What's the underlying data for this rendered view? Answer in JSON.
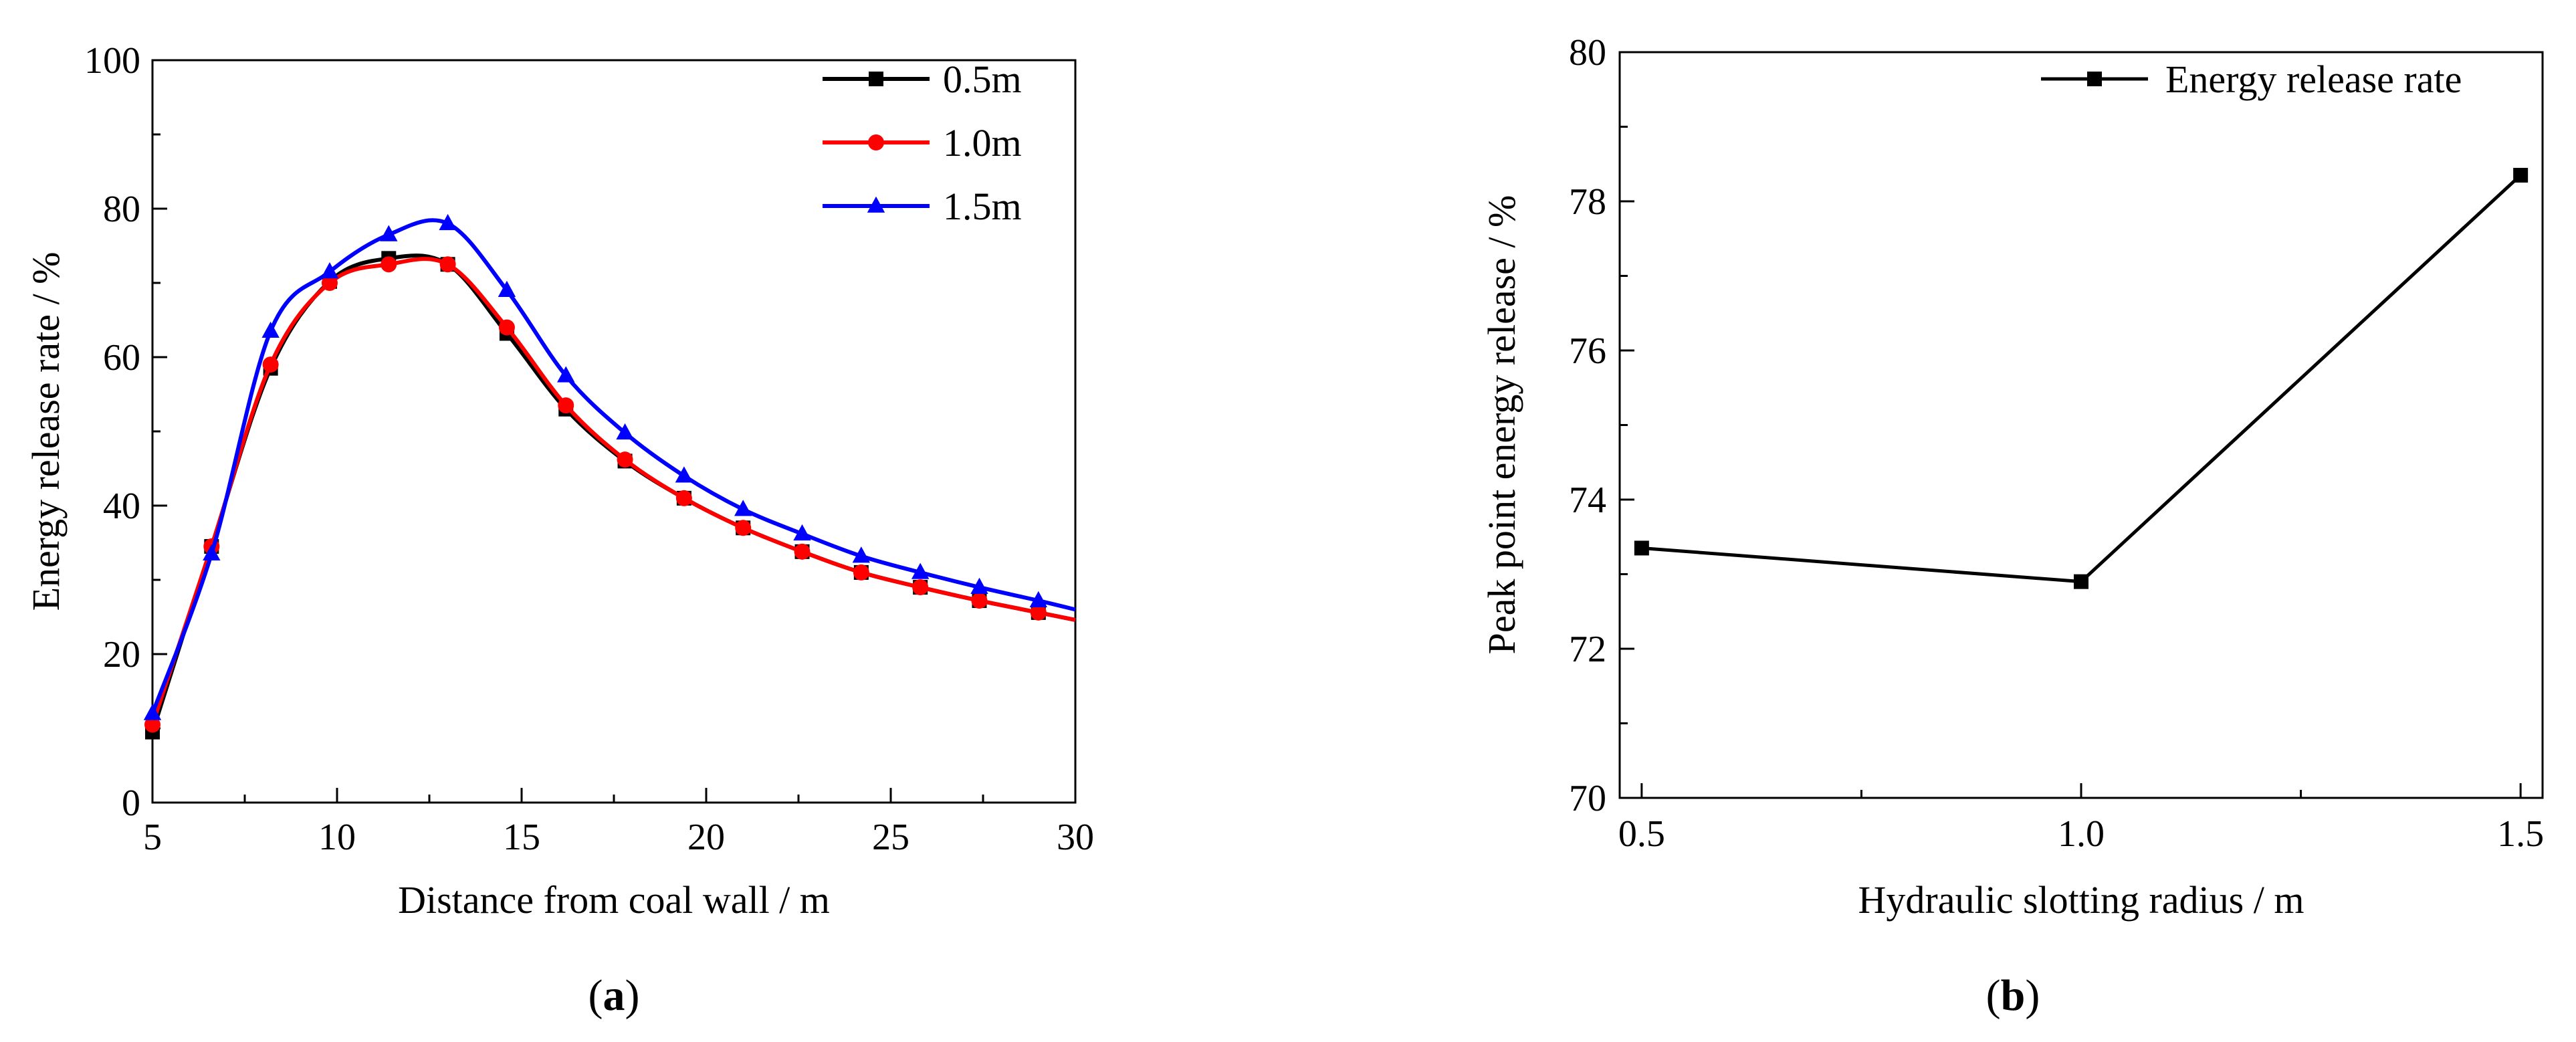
{
  "chart_data": [
    {
      "type": "line",
      "panel_label": "a",
      "xlabel": "Distance from coal wall / m",
      "ylabel": "Energy release rate / %",
      "xlim": [
        5,
        30
      ],
      "ylim": [
        0,
        100
      ],
      "xticks": [
        5,
        10,
        15,
        20,
        25,
        30
      ],
      "yticks": [
        0,
        20,
        40,
        60,
        80,
        100
      ],
      "x": [
        5,
        6.6,
        8.2,
        9.8,
        11.4,
        13.0,
        14.6,
        16.2,
        17.8,
        19.4,
        21.0,
        22.6,
        24.2,
        25.8,
        27.4,
        29.0,
        30
      ],
      "legend_position": "top-right",
      "series": [
        {
          "name": "0.5m",
          "marker": "square",
          "color": "#000000",
          "values": [
            9.5,
            34.5,
            58.5,
            70.2,
            73.3,
            72.5,
            63.2,
            53.0,
            46.0,
            41.0,
            37.0,
            33.8,
            31.0,
            29.0,
            27.2,
            25.6,
            24.6
          ]
        },
        {
          "name": "1.0m",
          "marker": "circle",
          "color": "#ff0000",
          "values": [
            10.5,
            34.5,
            59.0,
            70.0,
            72.5,
            72.5,
            64.0,
            53.5,
            46.2,
            41.0,
            37.0,
            33.8,
            31.0,
            29.0,
            27.2,
            25.6,
            24.6
          ]
        },
        {
          "name": "1.5m",
          "marker": "triangle",
          "color": "#0000ff",
          "values": [
            12.0,
            33.5,
            63.5,
            71.5,
            76.5,
            78.0,
            69.0,
            57.5,
            49.8,
            44.0,
            39.5,
            36.2,
            33.2,
            31.0,
            29.0,
            27.2,
            26.0
          ]
        }
      ]
    },
    {
      "type": "line",
      "panel_label": "b",
      "xlabel": "Hydraulic slotting radius / m",
      "ylabel": "Peak point energy release / %",
      "xlim": [
        0.475,
        1.525
      ],
      "ylim": [
        70,
        80
      ],
      "xticks": [
        "0.5",
        "1.0",
        "1.5"
      ],
      "yticks": [
        70,
        72,
        74,
        76,
        78,
        80
      ],
      "legend_position": "top-right",
      "series": [
        {
          "name": "Energy release rate",
          "marker": "square",
          "color": "#000000",
          "x": [
            0.5,
            1.0,
            1.5
          ],
          "values": [
            73.35,
            72.9,
            78.35
          ]
        }
      ]
    }
  ]
}
